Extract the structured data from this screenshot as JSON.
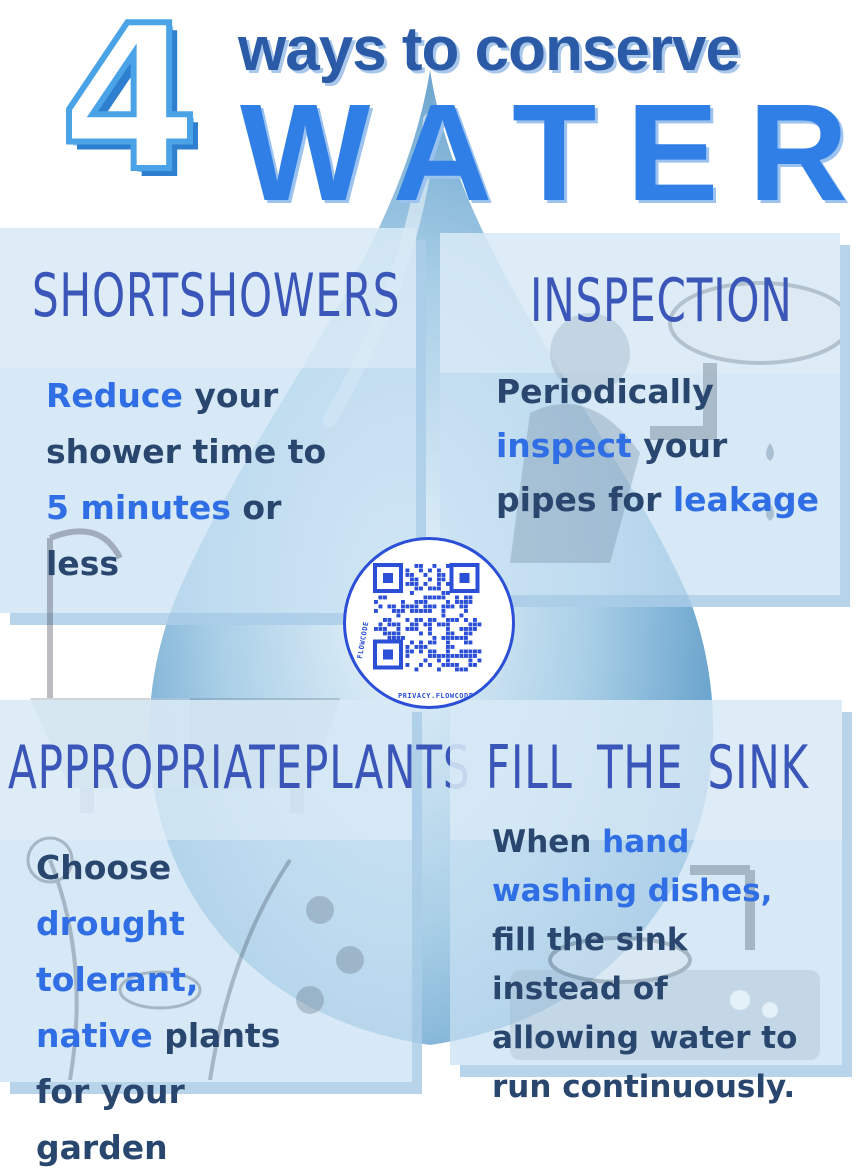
{
  "header": {
    "number": "4",
    "subtitle": "ways to conserve",
    "title": "WATER"
  },
  "tips": [
    {
      "title_words": [
        "SHORT",
        "SHOWERS"
      ],
      "body": [
        "Reduce",
        " your shower time to ",
        "5 minutes",
        " or less"
      ]
    },
    {
      "title_words": [
        "INSPECTION"
      ],
      "body": [
        "Periodically ",
        "inspect",
        " your pipes for ",
        "leakage"
      ]
    },
    {
      "title_words": [
        "APPROPRIATE",
        "PLANTS"
      ],
      "body": [
        "Choose ",
        "drought tolerant, native",
        " plants for your garden"
      ]
    },
    {
      "title_words": [
        "FILL",
        "THE",
        "SINK"
      ],
      "body": [
        "When ",
        "hand washing dishes,",
        " fill the sink instead of allowing water to run continuously."
      ]
    }
  ],
  "qr": {
    "brand": "FLOWCODE",
    "privacy": "PRIVACY.FLOWCODE.COM"
  },
  "colors": {
    "accent": "#2f6ee4",
    "title_blue": "#2f7fe6",
    "heading": "#3a56b8",
    "body_text": "#28466e",
    "panel": "#c8e0f2",
    "drop": "#7fb4d8"
  }
}
